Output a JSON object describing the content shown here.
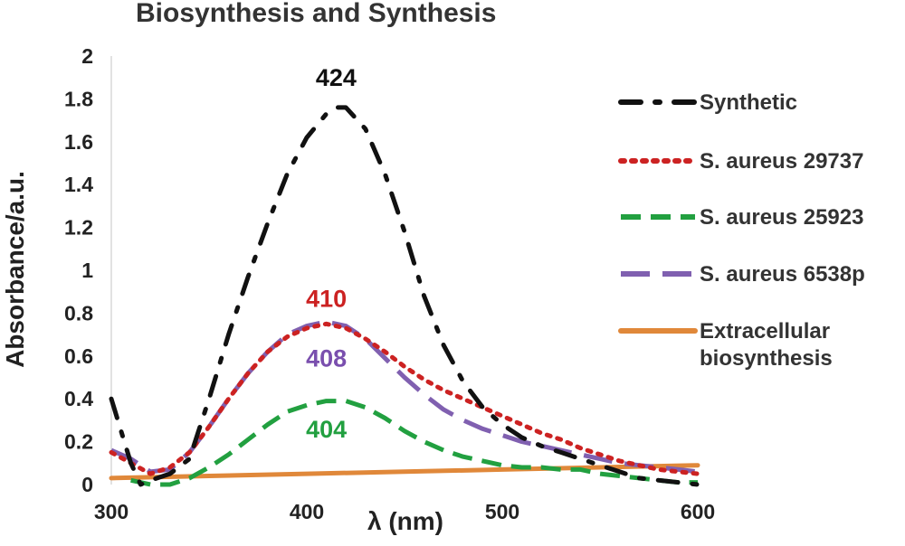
{
  "chart_data": {
    "type": "line",
    "title": "Biosynthesis and Synthesis",
    "xlabel": "λ  (nm)",
    "ylabel": "Absorbance/a.u.",
    "xlim": [
      300,
      600
    ],
    "ylim": [
      0,
      2
    ],
    "xticks": [
      "300",
      "400",
      "500",
      "600"
    ],
    "yticks": [
      "0",
      "0.2",
      "0.4",
      "0.6",
      "0.8",
      "1",
      "1.2",
      "1.4",
      "1.6",
      "1.8",
      "2"
    ],
    "grid": false,
    "legend_position": "right",
    "series": [
      {
        "name": "Synthetic",
        "color": "#111111",
        "style": "dash-dot",
        "points": [
          [
            300,
            0.4
          ],
          [
            305,
            0.25
          ],
          [
            310,
            0.1
          ],
          [
            315,
            0.0
          ],
          [
            320,
            0.02
          ],
          [
            330,
            0.05
          ],
          [
            340,
            0.12
          ],
          [
            350,
            0.4
          ],
          [
            360,
            0.7
          ],
          [
            370,
            0.97
          ],
          [
            380,
            1.22
          ],
          [
            390,
            1.45
          ],
          [
            400,
            1.62
          ],
          [
            410,
            1.73
          ],
          [
            415,
            1.76
          ],
          [
            420,
            1.76
          ],
          [
            430,
            1.66
          ],
          [
            440,
            1.45
          ],
          [
            450,
            1.18
          ],
          [
            460,
            0.88
          ],
          [
            470,
            0.65
          ],
          [
            480,
            0.48
          ],
          [
            490,
            0.36
          ],
          [
            500,
            0.28
          ],
          [
            510,
            0.22
          ],
          [
            520,
            0.18
          ],
          [
            530,
            0.15
          ],
          [
            540,
            0.12
          ],
          [
            550,
            0.09
          ],
          [
            560,
            0.06
          ],
          [
            570,
            0.03
          ],
          [
            580,
            0.02
          ],
          [
            590,
            0.01
          ],
          [
            600,
            0.0
          ]
        ]
      },
      {
        "name": "S. aureus 29737",
        "color": "#cc2222",
        "style": "dotted",
        "points": [
          [
            300,
            0.15
          ],
          [
            310,
            0.1
          ],
          [
            320,
            0.05
          ],
          [
            330,
            0.08
          ],
          [
            340,
            0.15
          ],
          [
            350,
            0.27
          ],
          [
            360,
            0.4
          ],
          [
            370,
            0.52
          ],
          [
            380,
            0.62
          ],
          [
            390,
            0.69
          ],
          [
            400,
            0.73
          ],
          [
            410,
            0.75
          ],
          [
            420,
            0.73
          ],
          [
            430,
            0.68
          ],
          [
            440,
            0.62
          ],
          [
            450,
            0.55
          ],
          [
            460,
            0.49
          ],
          [
            470,
            0.44
          ],
          [
            480,
            0.4
          ],
          [
            490,
            0.36
          ],
          [
            500,
            0.32
          ],
          [
            510,
            0.28
          ],
          [
            520,
            0.24
          ],
          [
            530,
            0.21
          ],
          [
            540,
            0.17
          ],
          [
            550,
            0.14
          ],
          [
            560,
            0.11
          ],
          [
            570,
            0.09
          ],
          [
            580,
            0.07
          ],
          [
            590,
            0.06
          ],
          [
            600,
            0.05
          ]
        ]
      },
      {
        "name": "S. aureus 25923",
        "color": "#22a040",
        "style": "dashed",
        "points": [
          [
            310,
            0.02
          ],
          [
            320,
            0.0
          ],
          [
            330,
            0.0
          ],
          [
            340,
            0.03
          ],
          [
            350,
            0.08
          ],
          [
            360,
            0.14
          ],
          [
            370,
            0.21
          ],
          [
            380,
            0.28
          ],
          [
            390,
            0.34
          ],
          [
            400,
            0.37
          ],
          [
            410,
            0.39
          ],
          [
            420,
            0.39
          ],
          [
            430,
            0.36
          ],
          [
            440,
            0.31
          ],
          [
            450,
            0.25
          ],
          [
            460,
            0.2
          ],
          [
            470,
            0.16
          ],
          [
            480,
            0.13
          ],
          [
            490,
            0.11
          ],
          [
            500,
            0.09
          ],
          [
            510,
            0.08
          ],
          [
            520,
            0.08
          ],
          [
            530,
            0.07
          ],
          [
            540,
            0.07
          ],
          [
            550,
            0.05
          ],
          [
            560,
            0.04
          ],
          [
            570,
            0.03
          ],
          [
            580,
            0.02
          ],
          [
            590,
            0.01
          ],
          [
            600,
            0.01
          ]
        ]
      },
      {
        "name": "S. aureus 6538p",
        "color": "#8060b0",
        "style": "long-dash",
        "points": [
          [
            300,
            0.16
          ],
          [
            310,
            0.12
          ],
          [
            320,
            0.06
          ],
          [
            330,
            0.07
          ],
          [
            340,
            0.15
          ],
          [
            350,
            0.27
          ],
          [
            360,
            0.4
          ],
          [
            370,
            0.52
          ],
          [
            380,
            0.62
          ],
          [
            390,
            0.7
          ],
          [
            400,
            0.74
          ],
          [
            410,
            0.76
          ],
          [
            420,
            0.74
          ],
          [
            430,
            0.68
          ],
          [
            440,
            0.59
          ],
          [
            450,
            0.5
          ],
          [
            460,
            0.42
          ],
          [
            470,
            0.35
          ],
          [
            480,
            0.3
          ],
          [
            490,
            0.26
          ],
          [
            500,
            0.23
          ],
          [
            510,
            0.2
          ],
          [
            520,
            0.18
          ],
          [
            530,
            0.16
          ],
          [
            540,
            0.14
          ],
          [
            550,
            0.12
          ],
          [
            560,
            0.1
          ],
          [
            570,
            0.09
          ],
          [
            580,
            0.08
          ],
          [
            590,
            0.07
          ],
          [
            600,
            0.06
          ]
        ]
      },
      {
        "name": "Extracellular biosynthesis",
        "name_lines": [
          "Extracellular",
          "biosynthesis"
        ],
        "color": "#e0883a",
        "style": "solid",
        "points": [
          [
            300,
            0.03
          ],
          [
            350,
            0.04
          ],
          [
            400,
            0.05
          ],
          [
            450,
            0.06
          ],
          [
            500,
            0.07
          ],
          [
            550,
            0.08
          ],
          [
            600,
            0.09
          ]
        ]
      }
    ],
    "annotations": [
      {
        "text": "424",
        "x": 415,
        "y": 1.86,
        "color": "#111111"
      },
      {
        "text": "410",
        "x": 410,
        "y": 0.83,
        "color": "#cc2222"
      },
      {
        "text": "408",
        "x": 410,
        "y": 0.55,
        "color": "#7a4fae"
      },
      {
        "text": "404",
        "x": 410,
        "y": 0.22,
        "color": "#22a040"
      }
    ]
  }
}
